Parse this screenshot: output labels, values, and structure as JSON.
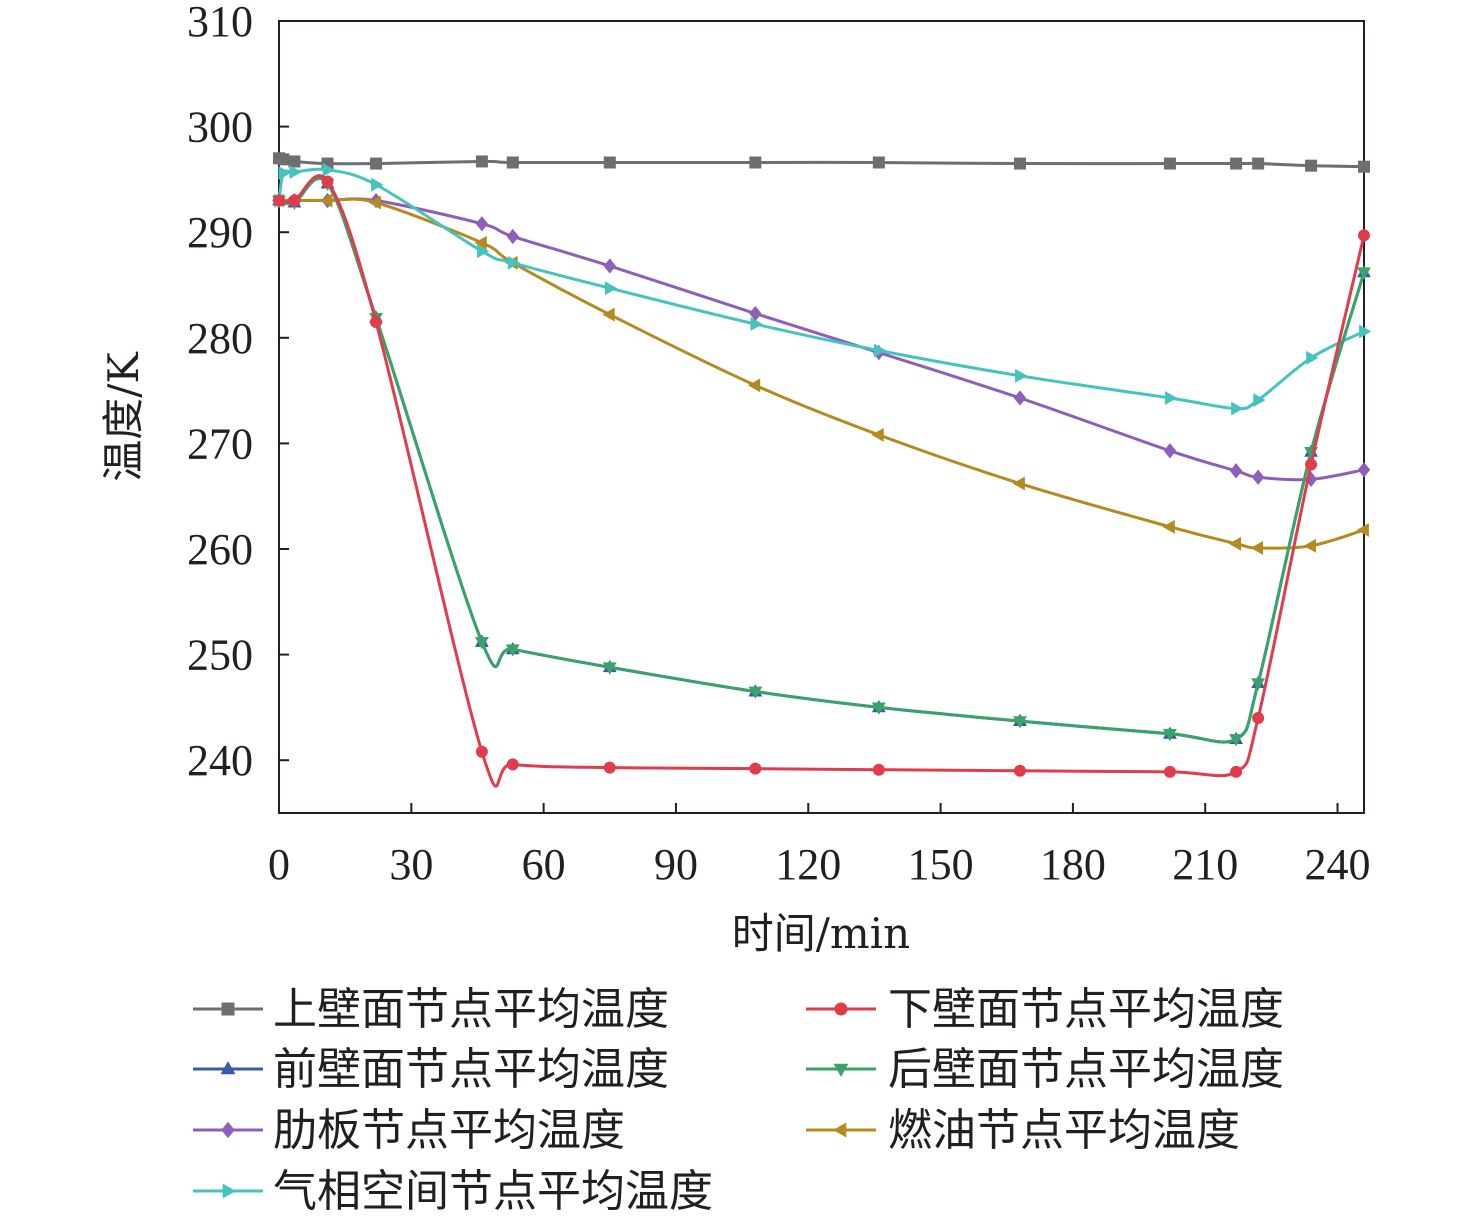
{
  "chart_data": {
    "type": "line",
    "xlabel": "时间/min",
    "ylabel": "温度/K",
    "xlim": [
      0,
      246
    ],
    "ylim": [
      235,
      310
    ],
    "xticks": [
      0,
      30,
      60,
      90,
      120,
      150,
      180,
      210,
      240
    ],
    "yticks": [
      240,
      250,
      260,
      270,
      280,
      290,
      300,
      310
    ],
    "grid": false,
    "legend_position": "bottom",
    "series": [
      {
        "name": "上壁面节点平均温度",
        "color": "#6d6e71",
        "marker": "square",
        "x": [
          0,
          1,
          3.5,
          11,
          22,
          46,
          53,
          75,
          108,
          136,
          168,
          202,
          217,
          222,
          234,
          246
        ],
        "y": [
          297.0,
          296.9,
          296.7,
          296.5,
          296.5,
          296.7,
          296.6,
          296.6,
          296.6,
          296.6,
          296.5,
          296.5,
          296.5,
          296.5,
          296.3,
          296.2
        ]
      },
      {
        "name": "下壁面节点平均温度",
        "color": "#e03c4c",
        "marker": "circle",
        "x": [
          0,
          3.5,
          11,
          22,
          46,
          53,
          75,
          108,
          136,
          168,
          202,
          217,
          222,
          234,
          246
        ],
        "y": [
          293.0,
          293.0,
          294.8,
          281.5,
          240.8,
          239.6,
          239.3,
          239.2,
          239.1,
          239.0,
          238.9,
          238.9,
          244.0,
          268.0,
          289.7
        ]
      },
      {
        "name": "前壁面节点平均温度",
        "color": "#3a5aa8",
        "marker": "triangle-up",
        "x": [
          0,
          3.5,
          11,
          22,
          46,
          53,
          75,
          108,
          136,
          168,
          202,
          217,
          222,
          234,
          246
        ],
        "y": [
          293.0,
          292.8,
          294.6,
          281.9,
          251.2,
          250.5,
          248.8,
          246.5,
          245.0,
          243.7,
          242.5,
          242.0,
          247.3,
          269.2,
          286.2
        ]
      },
      {
        "name": "后壁面节点平均温度",
        "color": "#3aa36a",
        "marker": "triangle-down",
        "x": [
          0,
          3.5,
          11,
          22,
          46,
          53,
          75,
          108,
          136,
          168,
          202,
          217,
          222,
          234,
          246
        ],
        "y": [
          293.0,
          292.8,
          294.6,
          281.9,
          251.2,
          250.5,
          248.8,
          246.5,
          245.0,
          243.7,
          242.5,
          242.0,
          247.3,
          269.2,
          286.2
        ]
      },
      {
        "name": "肋板节点平均温度",
        "color": "#8e5fb8",
        "marker": "diamond",
        "x": [
          0,
          3.5,
          11,
          22,
          46,
          53,
          75,
          108,
          136,
          168,
          202,
          217,
          222,
          234,
          246
        ],
        "y": [
          293.0,
          293.0,
          293.0,
          293.0,
          290.8,
          289.6,
          286.8,
          282.3,
          278.6,
          274.3,
          269.3,
          267.4,
          266.8,
          266.6,
          267.5
        ]
      },
      {
        "name": "燃油节点平均温度",
        "color": "#b58a1e",
        "marker": "triangle-left",
        "x": [
          0,
          3.5,
          11,
          22,
          46,
          53,
          75,
          108,
          136,
          168,
          202,
          217,
          222,
          234,
          246
        ],
        "y": [
          293.0,
          293.0,
          293.0,
          292.8,
          289.0,
          287.1,
          282.2,
          275.5,
          270.8,
          266.2,
          262.1,
          260.5,
          260.1,
          260.3,
          261.8
        ]
      },
      {
        "name": "气相空间节点平均温度",
        "color": "#45c3be",
        "marker": "triangle-right",
        "x": [
          0,
          1,
          3.5,
          11,
          22,
          46,
          53,
          75,
          108,
          136,
          168,
          202,
          217,
          222,
          234,
          246
        ],
        "y": [
          293.0,
          295.6,
          295.7,
          295.9,
          294.5,
          288.2,
          287.1,
          284.7,
          281.3,
          278.8,
          276.4,
          274.3,
          273.3,
          274.1,
          278.1,
          280.6
        ]
      }
    ]
  }
}
